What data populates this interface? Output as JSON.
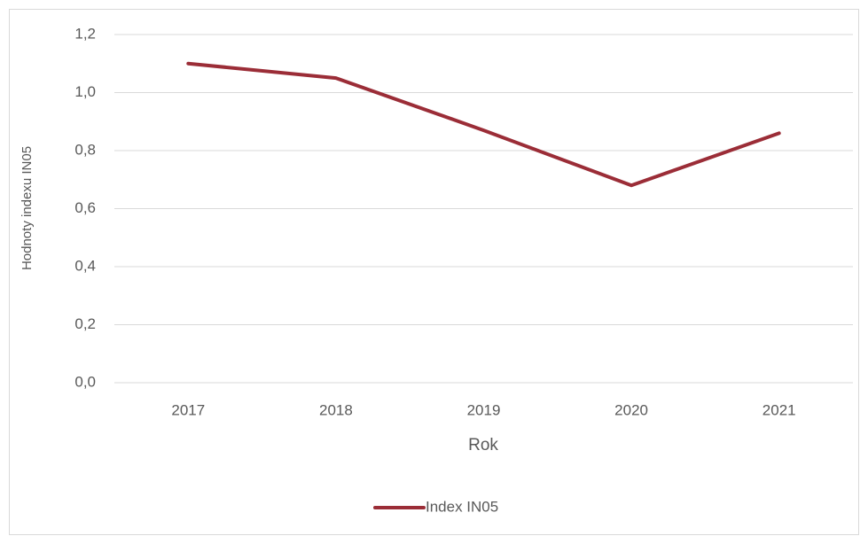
{
  "chart_data": {
    "type": "line",
    "categories": [
      "2017",
      "2018",
      "2019",
      "2020",
      "2021"
    ],
    "series": [
      {
        "name": "Index IN05",
        "color": "#9b2d37",
        "values": [
          1.1,
          1.05,
          0.87,
          0.68,
          0.86
        ]
      }
    ],
    "ylim": [
      0,
      1.2
    ],
    "yticks": [
      {
        "value": 0,
        "label": "0,0"
      },
      {
        "value": 0.2,
        "label": "0,2"
      },
      {
        "value": 0.4,
        "label": "0,4"
      },
      {
        "value": 0.6,
        "label": "0,6"
      },
      {
        "value": 0.8,
        "label": "0,8"
      },
      {
        "value": 1.0,
        "label": "1,0"
      },
      {
        "value": 1.2,
        "label": "1,2"
      }
    ],
    "x_label": "Rok",
    "y_label": "Hodnoty indexu IN05",
    "grid": true,
    "legend": "bottom"
  }
}
